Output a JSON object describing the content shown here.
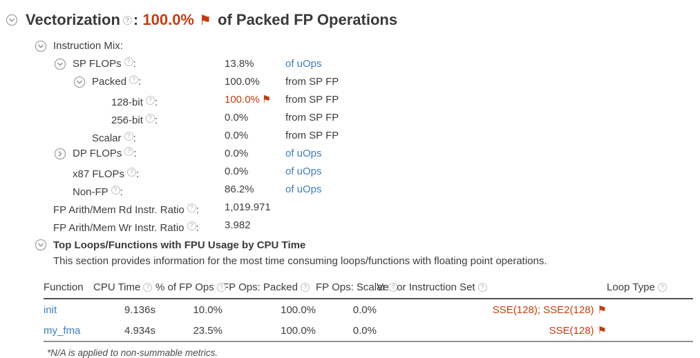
{
  "colors": {
    "alert_red": "#c23d0f",
    "link_blue": "#3e7cbe"
  },
  "icons": {
    "help": "?",
    "flag": "⚑"
  },
  "header": {
    "title": "Vectorization",
    "colon": ": ",
    "value": "100.0%",
    "suffix": " of Packed FP Operations"
  },
  "metrics": {
    "rows": [
      {
        "label": "Instruction Mix",
        "colon": ":",
        "help": false,
        "icon": "down",
        "level": 0,
        "value": "",
        "red": false,
        "flag": false,
        "unit": "",
        "unit_link": false
      },
      {
        "label": "SP FLOPs",
        "colon": ":",
        "help": true,
        "icon": "down",
        "level": 1,
        "value": "13.8%",
        "red": false,
        "flag": false,
        "unit": "of uOps",
        "unit_link": true
      },
      {
        "label": "Packed",
        "colon": ":",
        "help": true,
        "icon": "down",
        "level": 2,
        "value": "100.0%",
        "red": false,
        "flag": false,
        "unit": "from SP FP",
        "unit_link": false
      },
      {
        "label": "128-bit",
        "colon": ":",
        "help": true,
        "icon": "none",
        "level": 3,
        "value": "100.0%",
        "red": true,
        "flag": true,
        "unit": "from SP FP",
        "unit_link": false
      },
      {
        "label": "256-bit",
        "colon": ":",
        "help": true,
        "icon": "none",
        "level": 3,
        "value": "0.0%",
        "red": false,
        "flag": false,
        "unit": "from SP FP",
        "unit_link": false
      },
      {
        "label": "Scalar",
        "colon": ":",
        "help": true,
        "icon": "none",
        "level": 2,
        "value": "0.0%",
        "red": false,
        "flag": false,
        "unit": "from SP FP",
        "unit_link": false
      },
      {
        "label": "DP FLOPs",
        "colon": ":",
        "help": true,
        "icon": "right",
        "level": 1,
        "value": "0.0%",
        "red": false,
        "flag": false,
        "unit": "of uOps",
        "unit_link": true
      },
      {
        "label": "x87 FLOPs",
        "colon": ":",
        "help": true,
        "icon": "none",
        "level": 1,
        "value": "0.0%",
        "red": false,
        "flag": false,
        "unit": "of uOps",
        "unit_link": true
      },
      {
        "label": "Non-FP",
        "colon": ":",
        "help": true,
        "icon": "none",
        "level": 1,
        "value": "86.2%",
        "red": false,
        "flag": false,
        "unit": "of uOps",
        "unit_link": true
      },
      {
        "label": "FP Arith/Mem Rd Instr. Ratio",
        "colon": ":",
        "help": true,
        "icon": "none",
        "level": 0,
        "value": "1,019.971",
        "red": false,
        "flag": false,
        "unit": "",
        "unit_link": false
      },
      {
        "label": "FP Arith/Mem Wr Instr. Ratio",
        "colon": ":",
        "help": true,
        "icon": "none",
        "level": 0,
        "value": "3.982",
        "red": false,
        "flag": false,
        "unit": "",
        "unit_link": false
      }
    ]
  },
  "section2": {
    "title": "Top Loops/Functions with FPU Usage by CPU Time",
    "description": "This section provides information for the most time consuming loops/functions with floating point operations."
  },
  "table": {
    "columns": [
      {
        "key": "function",
        "label": "Function",
        "help": false
      },
      {
        "key": "cpu_time",
        "label": "CPU Time",
        "help": true
      },
      {
        "key": "pct_fp_ops",
        "label": "% of FP Ops",
        "help": true
      },
      {
        "key": "packed",
        "label": "FP Ops: Packed",
        "help": true
      },
      {
        "key": "scalar",
        "label": "FP Ops: Scalar",
        "help": true
      },
      {
        "key": "vector",
        "label": "Vector Instruction Set",
        "help": true
      },
      {
        "key": "loop_type",
        "label": "Loop Type",
        "help": true
      }
    ],
    "rows": [
      {
        "function": "init",
        "cpu_time": "9.136s",
        "pct_fp_ops": "10.0%",
        "packed": "100.0%",
        "scalar": "0.0%",
        "vector": "SSE(128); SSE2(128)",
        "vector_flag": true,
        "loop_type": ""
      },
      {
        "function": "my_fma",
        "cpu_time": "4.934s",
        "pct_fp_ops": "23.5%",
        "packed": "100.0%",
        "scalar": "0.0%",
        "vector": "SSE(128)",
        "vector_flag": true,
        "loop_type": ""
      }
    ]
  },
  "footnote": "*N/A is applied to non-summable metrics."
}
